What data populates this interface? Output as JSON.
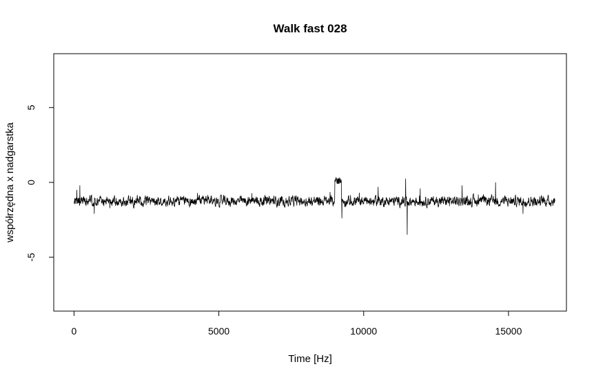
{
  "chart_data": {
    "type": "line",
    "title": "Walk fast 028",
    "xlabel": "Time [Hz]",
    "ylabel": "współrzędna x nadgarstka",
    "xlim": [
      -700,
      17000
    ],
    "ylim": [
      -8.6,
      8.6
    ],
    "x_ticks": [
      0,
      5000,
      10000,
      15000
    ],
    "x_tick_labels": [
      "0",
      "5000",
      "10000",
      "15000"
    ],
    "y_ticks": [
      -5,
      0,
      5
    ],
    "y_tick_labels": [
      "-5",
      "0",
      "5"
    ],
    "grid": false,
    "legend": "none",
    "colors": {
      "line": "#000000",
      "axes": "#000000",
      "background": "#ffffff"
    },
    "series": [
      {
        "n_points": 16600,
        "baseline": -1.25,
        "noise_amplitude": 0.35,
        "x_end": 16600,
        "features": [
          {
            "x": 100,
            "y": -0.5
          },
          {
            "x": 200,
            "y": -0.2
          },
          {
            "x": 700,
            "y": -2.1
          },
          {
            "x": 9050,
            "y": 0.35
          },
          {
            "x": 9150,
            "y": 0.3
          },
          {
            "x": 9250,
            "y": -2.4
          },
          {
            "x": 10500,
            "y": -0.3
          },
          {
            "x": 11450,
            "y": 0.25
          },
          {
            "x": 11500,
            "y": -3.5
          },
          {
            "x": 11950,
            "y": -0.4
          },
          {
            "x": 13400,
            "y": -0.2
          },
          {
            "x": 14550,
            "y": 0.0
          },
          {
            "x": 15500,
            "y": -2.1
          }
        ]
      }
    ]
  }
}
